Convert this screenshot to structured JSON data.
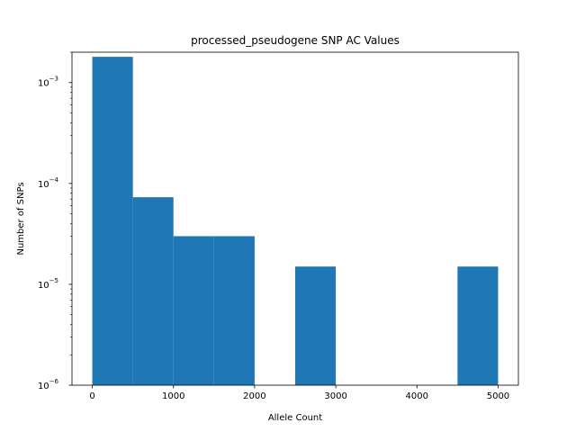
{
  "chart_data": {
    "type": "bar",
    "title": "processed_pseudogene SNP AC Values",
    "xlabel": "Allele Count",
    "ylabel": "Number of SNPs",
    "yscale": "log",
    "bar_color": "#1f77b4",
    "bins": [
      {
        "x0": 0,
        "x1": 500,
        "value": 0.0018
      },
      {
        "x0": 500,
        "x1": 1000,
        "value": 7.3e-05
      },
      {
        "x0": 1000,
        "x1": 1500,
        "value": 3e-05
      },
      {
        "x0": 1500,
        "x1": 2000,
        "value": 3e-05
      },
      {
        "x0": 2000,
        "x1": 2500,
        "value": 0
      },
      {
        "x0": 2500,
        "x1": 3000,
        "value": 1.5e-05
      },
      {
        "x0": 3000,
        "x1": 3500,
        "value": 0
      },
      {
        "x0": 3500,
        "x1": 4000,
        "value": 0
      },
      {
        "x0": 4000,
        "x1": 4500,
        "value": 0
      },
      {
        "x0": 4500,
        "x1": 5000,
        "value": 1.5e-05
      }
    ],
    "xlim": [
      -250,
      5250
    ],
    "ylim": [
      1e-06,
      0.002
    ],
    "x_ticks": [
      {
        "value": 0,
        "label": "0"
      },
      {
        "value": 1000,
        "label": "1000"
      },
      {
        "value": 2000,
        "label": "2000"
      },
      {
        "value": 3000,
        "label": "3000"
      },
      {
        "value": 4000,
        "label": "4000"
      },
      {
        "value": 5000,
        "label": "5000"
      }
    ],
    "y_ticks": [
      {
        "value": 1e-06,
        "base": "10",
        "exp": "−6"
      },
      {
        "value": 1e-05,
        "base": "10",
        "exp": "−5"
      },
      {
        "value": 0.0001,
        "base": "10",
        "exp": "−4"
      },
      {
        "value": 0.001,
        "base": "10",
        "exp": "−3"
      }
    ],
    "grid": false,
    "legend": false
  }
}
